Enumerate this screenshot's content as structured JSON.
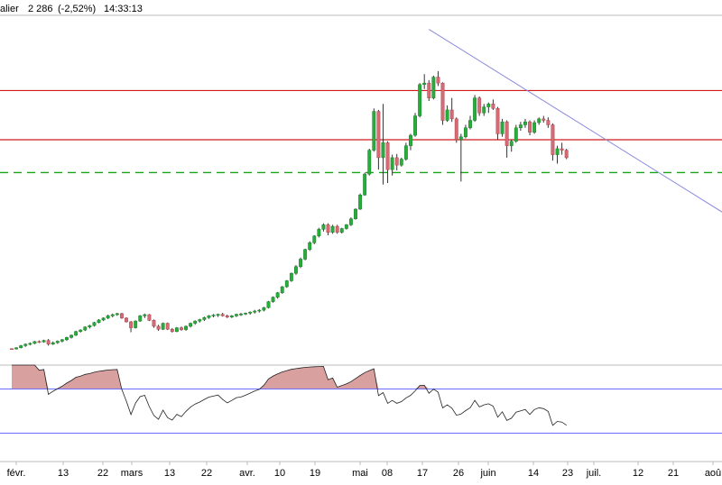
{
  "header": {
    "instrument": "alier",
    "last_price": "2 286",
    "change": "(-2,52%)",
    "time": "14:33:13"
  },
  "colors": {
    "background": "#ffffff",
    "up_candle": "#27ae3a",
    "down_candle": "#d56b75",
    "wick": "#333333",
    "resistance_line": "#d21a1a",
    "support_line": "#17a31a",
    "trendline": "#8888dd",
    "oscillator_line": "#222222",
    "oscillator_fill": "#d9a0a0",
    "oscillator_band": "#6b6bff",
    "panel_border": "#bbbbbb"
  },
  "chart_data": [
    {
      "type": "candlestick",
      "title": "",
      "grid": false,
      "x_tick_labels": [
        "févr.",
        "13",
        "22",
        "mars",
        "13",
        "22",
        "avr.",
        "10",
        "19",
        "mai",
        "08",
        "17",
        "26",
        "juin",
        "14",
        "23",
        "juil.",
        "12",
        "21",
        "aoû"
      ],
      "horizontal_levels": [
        {
          "style": "solid",
          "color": "red",
          "level": 3050
        },
        {
          "style": "solid",
          "color": "red",
          "level": 2720
        },
        {
          "style": "dashed",
          "color": "green",
          "level": 2500
        }
      ],
      "trendline": {
        "from_candle": 91,
        "from_value": 3460,
        "to_candle": 138,
        "to_value": 2560
      },
      "candles": [
        [
          1320,
          1322,
          1316,
          1318
        ],
        [
          1318,
          1330,
          1314,
          1326
        ],
        [
          1326,
          1345,
          1322,
          1340
        ],
        [
          1340,
          1355,
          1332,
          1350
        ],
        [
          1350,
          1362,
          1342,
          1355
        ],
        [
          1355,
          1372,
          1350,
          1368
        ],
        [
          1368,
          1375,
          1358,
          1365
        ],
        [
          1365,
          1380,
          1360,
          1375
        ],
        [
          1375,
          1385,
          1340,
          1350
        ],
        [
          1350,
          1368,
          1345,
          1360
        ],
        [
          1360,
          1375,
          1352,
          1370
        ],
        [
          1370,
          1385,
          1362,
          1380
        ],
        [
          1380,
          1400,
          1372,
          1395
        ],
        [
          1395,
          1415,
          1388,
          1410
        ],
        [
          1410,
          1440,
          1405,
          1435
        ],
        [
          1435,
          1450,
          1428,
          1445
        ],
        [
          1445,
          1470,
          1438,
          1465
        ],
        [
          1465,
          1480,
          1455,
          1475
        ],
        [
          1475,
          1500,
          1468,
          1495
        ],
        [
          1495,
          1518,
          1490,
          1512
        ],
        [
          1512,
          1530,
          1505,
          1525
        ],
        [
          1525,
          1548,
          1518,
          1540
        ],
        [
          1540,
          1555,
          1530,
          1548
        ],
        [
          1548,
          1560,
          1540,
          1555
        ],
        [
          1555,
          1560,
          1520,
          1525
        ],
        [
          1525,
          1530,
          1495,
          1500
        ],
        [
          1500,
          1505,
          1430,
          1460
        ],
        [
          1460,
          1510,
          1455,
          1505
        ],
        [
          1505,
          1545,
          1500,
          1540
        ],
        [
          1540,
          1555,
          1525,
          1548
        ],
        [
          1548,
          1552,
          1505,
          1510
        ],
        [
          1510,
          1515,
          1460,
          1470
        ],
        [
          1470,
          1480,
          1440,
          1450
        ],
        [
          1450,
          1495,
          1445,
          1490
        ],
        [
          1490,
          1495,
          1445,
          1450
        ],
        [
          1450,
          1458,
          1428,
          1435
        ],
        [
          1435,
          1465,
          1430,
          1460
        ],
        [
          1460,
          1468,
          1440,
          1448
        ],
        [
          1448,
          1475,
          1440,
          1470
        ],
        [
          1470,
          1495,
          1462,
          1490
        ],
        [
          1490,
          1510,
          1480,
          1505
        ],
        [
          1505,
          1520,
          1495,
          1515
        ],
        [
          1515,
          1535,
          1505,
          1528
        ],
        [
          1528,
          1545,
          1520,
          1540
        ],
        [
          1540,
          1552,
          1530,
          1545
        ],
        [
          1545,
          1555,
          1532,
          1550
        ],
        [
          1550,
          1560,
          1535,
          1540
        ],
        [
          1540,
          1548,
          1525,
          1532
        ],
        [
          1532,
          1545,
          1525,
          1540
        ],
        [
          1540,
          1555,
          1532,
          1550
        ],
        [
          1550,
          1560,
          1540,
          1552
        ],
        [
          1552,
          1562,
          1545,
          1558
        ],
        [
          1558,
          1570,
          1548,
          1565
        ],
        [
          1565,
          1580,
          1555,
          1572
        ],
        [
          1572,
          1585,
          1562,
          1578
        ],
        [
          1578,
          1600,
          1570,
          1595
        ],
        [
          1595,
          1640,
          1590,
          1635
        ],
        [
          1635,
          1670,
          1628,
          1665
        ],
        [
          1665,
          1700,
          1655,
          1695
        ],
        [
          1695,
          1740,
          1688,
          1735
        ],
        [
          1735,
          1780,
          1728,
          1775
        ],
        [
          1775,
          1830,
          1768,
          1825
        ],
        [
          1825,
          1880,
          1815,
          1870
        ],
        [
          1870,
          1930,
          1860,
          1920
        ],
        [
          1920,
          1990,
          1912,
          1985
        ],
        [
          1985,
          2040,
          1975,
          2030
        ],
        [
          2030,
          2080,
          2020,
          2075
        ],
        [
          2075,
          2130,
          2065,
          2120
        ],
        [
          2120,
          2160,
          2105,
          2150
        ],
        [
          2150,
          2160,
          2080,
          2100
        ],
        [
          2100,
          2150,
          2090,
          2140
        ],
        [
          2140,
          2150,
          2090,
          2100
        ],
        [
          2100,
          2130,
          2092,
          2125
        ],
        [
          2125,
          2155,
          2118,
          2150
        ],
        [
          2150,
          2200,
          2142,
          2190
        ],
        [
          2190,
          2260,
          2185,
          2255
        ],
        [
          2255,
          2360,
          2250,
          2350
        ],
        [
          2350,
          2500,
          2345,
          2490
        ],
        [
          2490,
          2660,
          2480,
          2650
        ],
        [
          2650,
          2930,
          2640,
          2910
        ],
        [
          2910,
          2920,
          2520,
          2600
        ],
        [
          2600,
          2960,
          2420,
          2700
        ],
        [
          2700,
          2710,
          2430,
          2520
        ],
        [
          2520,
          2620,
          2480,
          2600
        ],
        [
          2600,
          2625,
          2515,
          2550
        ],
        [
          2550,
          2600,
          2540,
          2590
        ],
        [
          2590,
          2700,
          2580,
          2680
        ],
        [
          2680,
          2760,
          2650,
          2750
        ],
        [
          2750,
          2900,
          2740,
          2880
        ],
        [
          2880,
          3100,
          2870,
          3090
        ],
        [
          3090,
          3160,
          3060,
          3100
        ],
        [
          3100,
          3120,
          2980,
          3000
        ],
        [
          3000,
          3150,
          2990,
          3140
        ],
        [
          3140,
          3180,
          3080,
          3100
        ],
        [
          3100,
          3105,
          2820,
          2850
        ],
        [
          2850,
          2950,
          2840,
          2920
        ],
        [
          2920,
          3000,
          2840,
          2860
        ],
        [
          2860,
          2870,
          2700,
          2720
        ],
        [
          2720,
          2760,
          2440,
          2740
        ],
        [
          2740,
          2820,
          2730,
          2800
        ],
        [
          2800,
          2880,
          2790,
          2850
        ],
        [
          2850,
          3020,
          2840,
          3000
        ],
        [
          3000,
          3010,
          2880,
          2900
        ],
        [
          2900,
          2960,
          2880,
          2940
        ],
        [
          2940,
          2970,
          2900,
          2960
        ],
        [
          2960,
          2990,
          2920,
          2930
        ],
        [
          2930,
          2940,
          2720,
          2760
        ],
        [
          2760,
          2860,
          2740,
          2840
        ],
        [
          2840,
          2850,
          2600,
          2680
        ],
        [
          2680,
          2720,
          2640,
          2710
        ],
        [
          2710,
          2820,
          2700,
          2800
        ],
        [
          2800,
          2840,
          2780,
          2820
        ],
        [
          2820,
          2860,
          2800,
          2840
        ],
        [
          2840,
          2850,
          2750,
          2770
        ],
        [
          2770,
          2850,
          2760,
          2835
        ],
        [
          2835,
          2870,
          2820,
          2860
        ],
        [
          2860,
          2880,
          2835,
          2850
        ],
        [
          2850,
          2870,
          2800,
          2820
        ],
        [
          2820,
          2830,
          2580,
          2620
        ],
        [
          2620,
          2680,
          2560,
          2660
        ],
        [
          2660,
          2700,
          2620,
          2650
        ],
        [
          2650,
          2660,
          2590,
          2600
        ]
      ],
      "panels": [
        {
          "name": "price",
          "y_range": [
            1240,
            3560
          ]
        },
        {
          "name": "oscillator",
          "y_range": [
            0,
            100
          ],
          "bands": [
            74,
            26
          ]
        }
      ]
    }
  ]
}
